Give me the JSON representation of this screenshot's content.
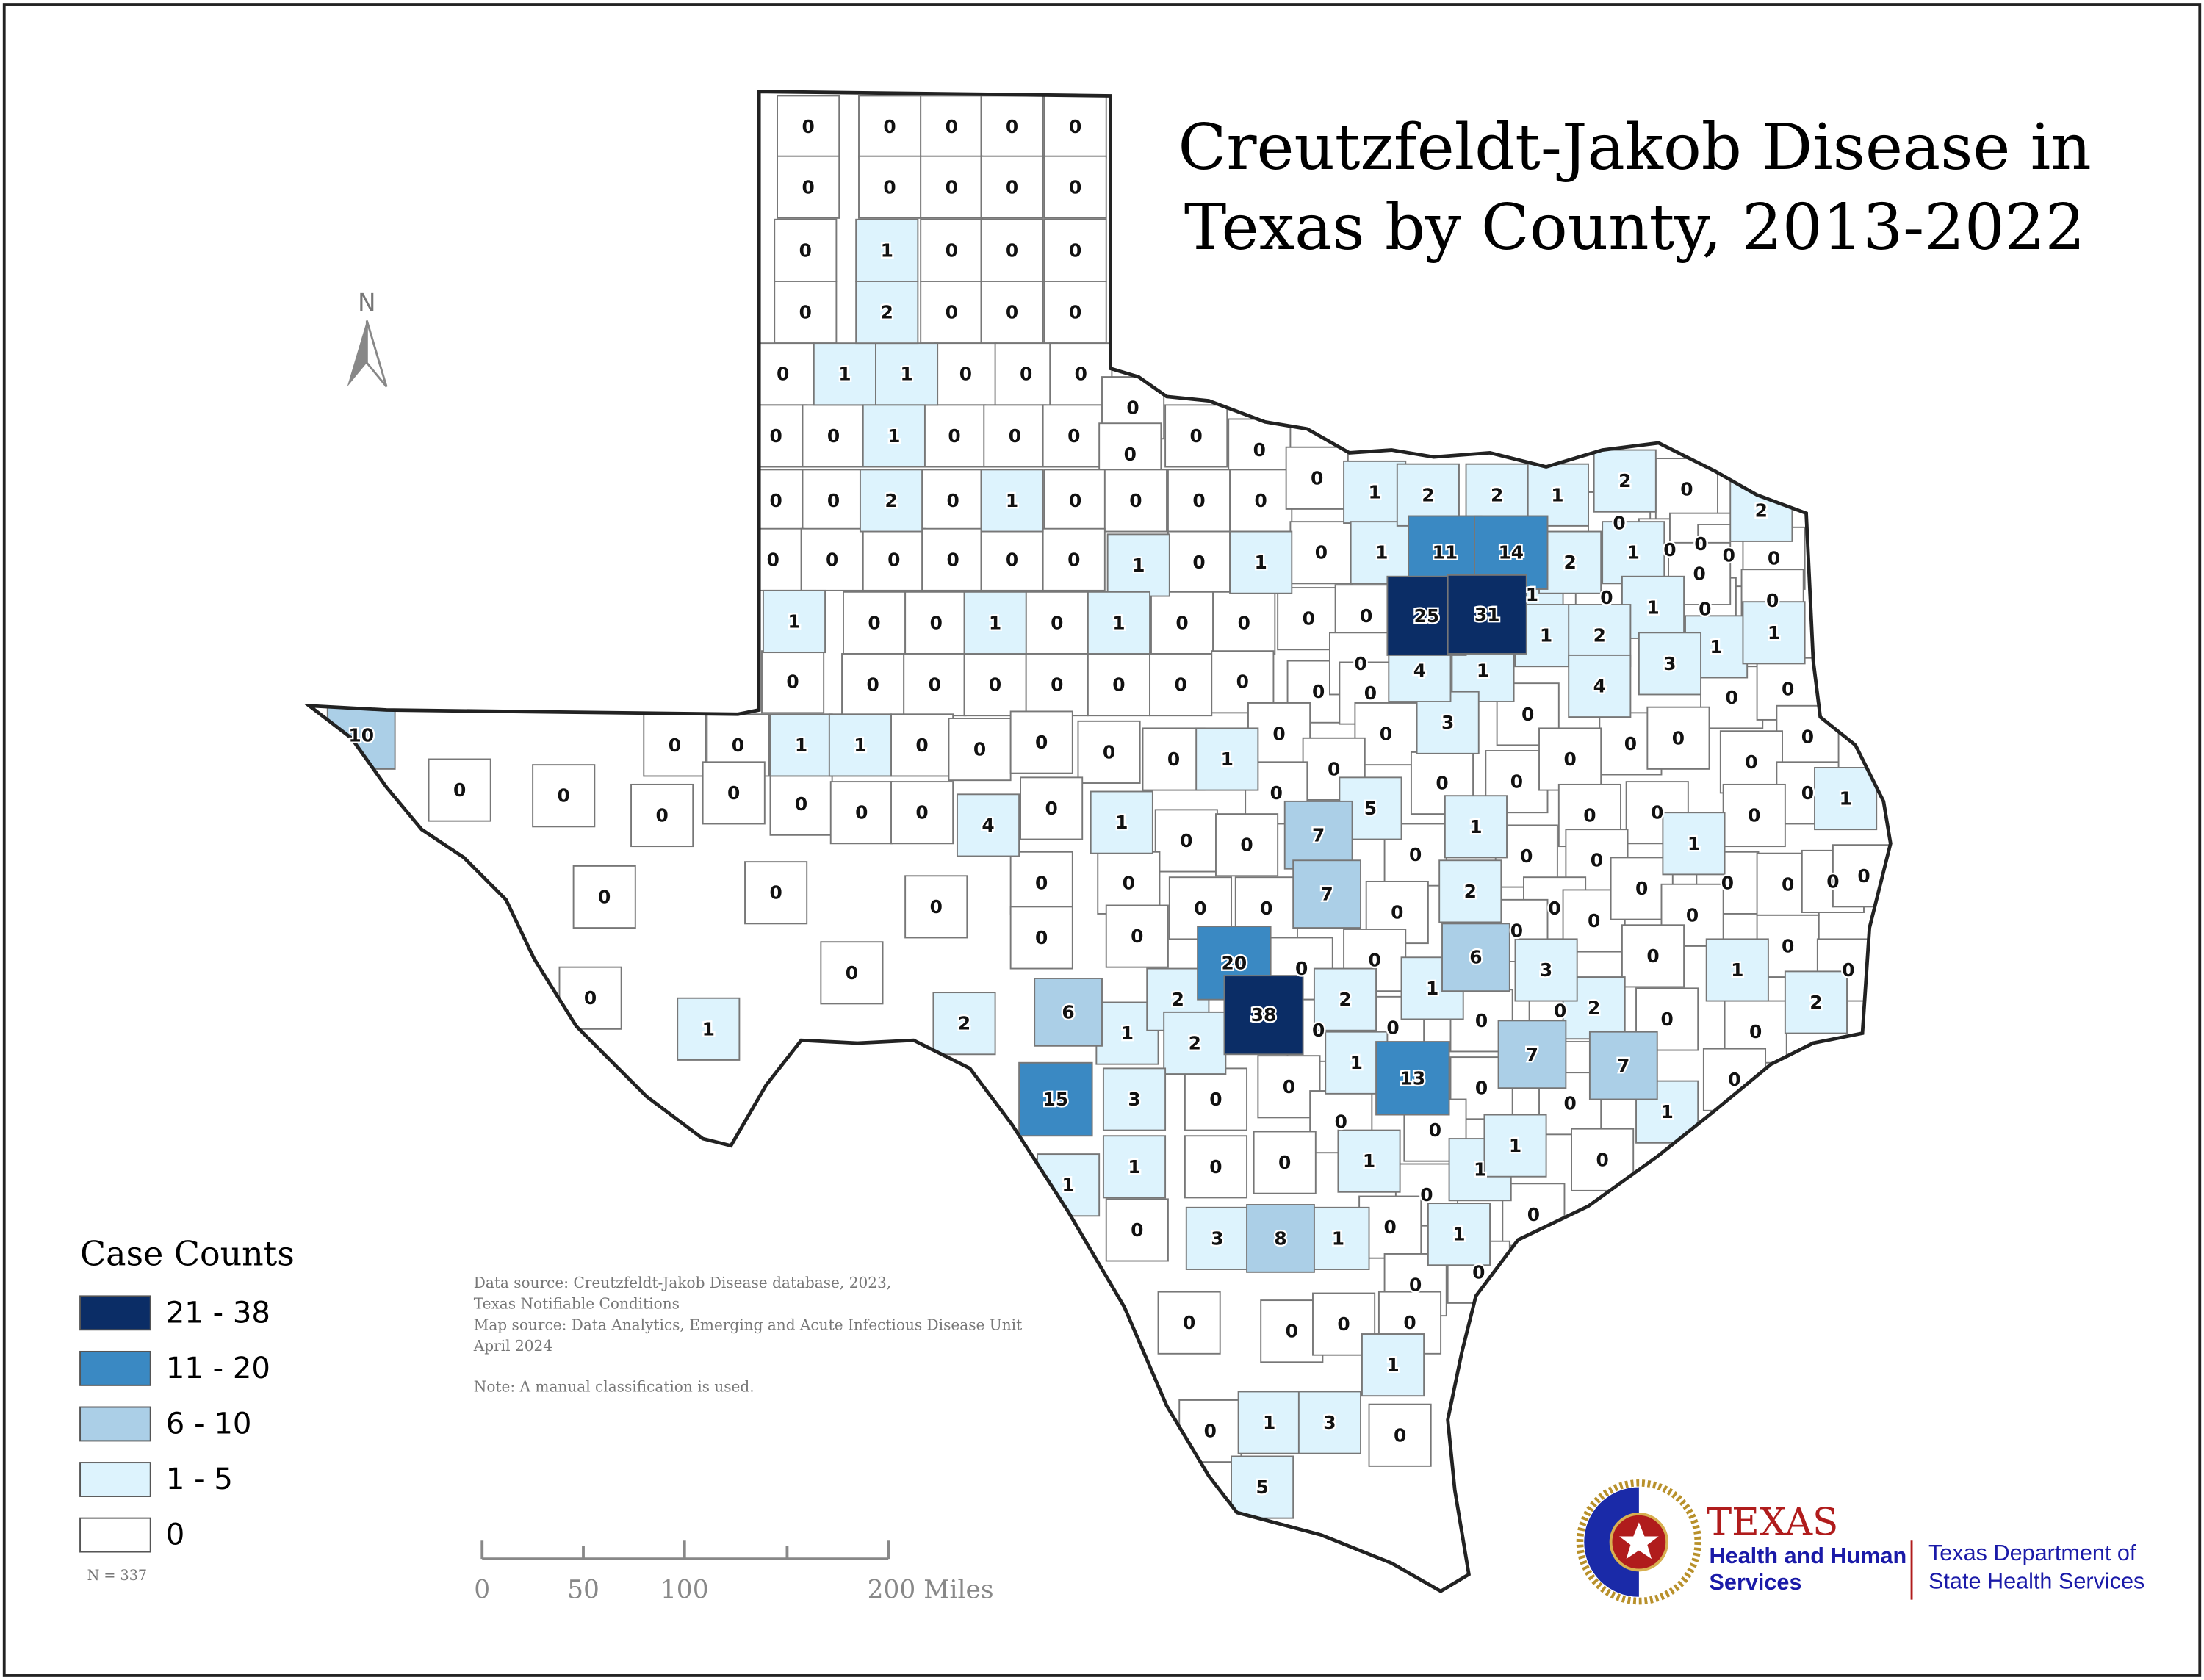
{
  "title": {
    "line1": "Creutzfeldt-Jakob Disease in",
    "line2": "Texas by County, 2013-2022"
  },
  "north_arrow": {
    "label": "N",
    "icon": "north-arrow-icon"
  },
  "legend": {
    "title": "Case Counts",
    "classes": [
      {
        "label": "21 - 38",
        "color": "#0b2d66"
      },
      {
        "label": "11 - 20",
        "color": "#3a89c3"
      },
      {
        "label": "6 - 10",
        "color": "#abcfe7"
      },
      {
        "label": "1 - 5",
        "color": "#ddf3fd"
      },
      {
        "label": "0",
        "color": "#ffffff"
      }
    ],
    "total": "N = 337"
  },
  "notes": {
    "line1": "Data source: Creutzfeldt-Jakob Disease database, 2023,",
    "line2": "Texas Notifiable Conditions",
    "line3": "Map source: Data Analytics, Emerging and Acute Infectious Disease Unit",
    "line4": "April 2024",
    "line5": "Note: A manual classification is used."
  },
  "scale_bar": {
    "labels": [
      "0",
      "50",
      "100",
      "200 Miles"
    ]
  },
  "logo": {
    "texas": "TEXAS",
    "hhs_line1": "Health and Human",
    "hhs_line2": "Services",
    "dshs_line1": "Texas Department of",
    "dshs_line2": "State Health Services"
  },
  "county_counts": [
    0,
    0,
    0,
    0,
    0,
    0,
    0,
    0,
    0,
    0,
    0,
    1,
    0,
    0,
    0,
    0,
    2,
    0,
    0,
    0,
    0,
    1,
    1,
    0,
    0,
    0,
    0,
    0,
    1,
    0,
    0,
    0,
    0,
    0,
    0,
    0,
    0,
    0,
    2,
    0,
    1,
    0,
    0,
    0,
    0,
    0,
    1,
    2,
    2,
    1,
    2,
    0,
    2,
    0,
    0,
    0,
    0,
    0,
    0,
    1,
    0,
    1,
    0,
    1,
    11,
    14,
    2,
    0,
    1,
    0,
    0,
    0,
    0,
    1,
    0,
    0,
    1,
    0,
    1,
    0,
    0,
    0,
    0,
    25,
    31,
    1,
    0,
    1,
    0,
    0,
    0,
    1,
    2,
    1,
    1,
    3,
    0,
    0,
    0,
    0,
    0,
    0,
    0,
    0,
    0,
    0,
    0,
    4,
    1,
    4,
    0,
    0,
    10,
    0,
    0,
    1,
    1,
    0,
    0,
    0,
    0,
    0,
    1,
    0,
    0,
    3,
    0,
    0,
    0,
    0,
    0,
    0,
    0,
    0,
    0,
    0,
    0,
    4,
    0,
    1,
    0,
    0,
    5,
    0,
    0,
    0,
    0,
    0,
    1,
    0,
    0,
    7,
    0,
    1,
    0,
    0,
    0,
    1,
    0,
    0,
    0,
    0,
    0,
    0,
    0,
    0,
    0,
    0,
    0,
    0,
    0,
    7,
    0,
    2,
    0,
    0,
    0,
    0,
    0,
    0,
    0,
    20,
    0,
    0,
    6,
    3,
    0,
    1,
    0,
    0,
    0,
    0,
    1,
    2,
    6,
    2,
    38,
    2,
    1,
    0,
    2,
    0,
    0,
    2,
    1,
    2,
    0,
    0,
    0,
    15,
    3,
    0,
    0,
    1,
    13,
    0,
    7,
    7,
    0,
    0,
    1,
    0,
    1,
    0,
    1,
    1,
    0,
    1,
    1,
    0,
    0,
    0,
    0,
    1,
    0,
    0,
    0,
    3,
    8,
    1,
    0,
    0,
    0,
    0,
    0,
    1,
    0,
    1,
    3,
    0,
    5
  ]
}
